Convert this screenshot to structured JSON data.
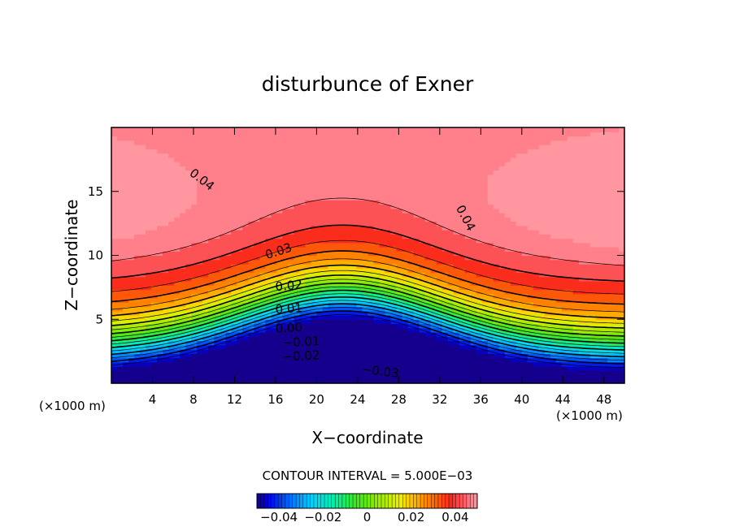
{
  "chart_data": {
    "type": "contour",
    "title": "disturbunce of Exner",
    "xlabel": "X−coordinate",
    "ylabel": "Z−coordinate",
    "x_unit": "(×1000 m)",
    "z_unit": "(×1000 m)",
    "xlim": [
      0,
      50
    ],
    "ylim": [
      0,
      20
    ],
    "x_ticks": [
      4,
      8,
      12,
      16,
      20,
      24,
      28,
      32,
      36,
      40,
      44,
      48
    ],
    "x_tick_labels": [
      "4",
      "8",
      "12",
      "16",
      "20",
      "24",
      "28",
      "32",
      "36",
      "40",
      "44",
      "48"
    ],
    "y_ticks": [
      5,
      10,
      15
    ],
    "y_tick_labels": [
      "5",
      "10",
      "15"
    ],
    "contour_interval": "CONTOUR INTERVAL = 5.000E−03",
    "contour_interval_value": 0.005,
    "value_range": [
      -0.045,
      0.047
    ],
    "contour_labels": [
      {
        "text": "0.04",
        "x": 8.8,
        "z": 15.9,
        "angle": 38
      },
      {
        "text": "0.04",
        "x": 34.5,
        "z": 12.9,
        "angle": 62
      },
      {
        "text": "0.03",
        "x": 16.3,
        "z": 10.3,
        "angle": -18
      },
      {
        "text": "0.02",
        "x": 17.3,
        "z": 7.6,
        "angle": -5
      },
      {
        "text": "0.01",
        "x": 17.3,
        "z": 5.8,
        "angle": -4
      },
      {
        "text": "0.00",
        "x": 17.3,
        "z": 4.3,
        "angle": -3
      },
      {
        "text": "−0.01",
        "x": 18.5,
        "z": 3.2,
        "angle": -3
      },
      {
        "text": "−0.02",
        "x": 18.5,
        "z": 2.1,
        "angle": -3
      },
      {
        "text": "−0.03",
        "x": 26.2,
        "z": 0.9,
        "angle": 7
      }
    ],
    "colorbar": {
      "range": [
        -0.05,
        0.05
      ],
      "tick_values": [
        -0.04,
        -0.02,
        0,
        0.02,
        0.04
      ],
      "tick_labels": [
        "−0.04",
        "−0.02",
        "0",
        "0.02",
        "0.04"
      ]
    }
  }
}
